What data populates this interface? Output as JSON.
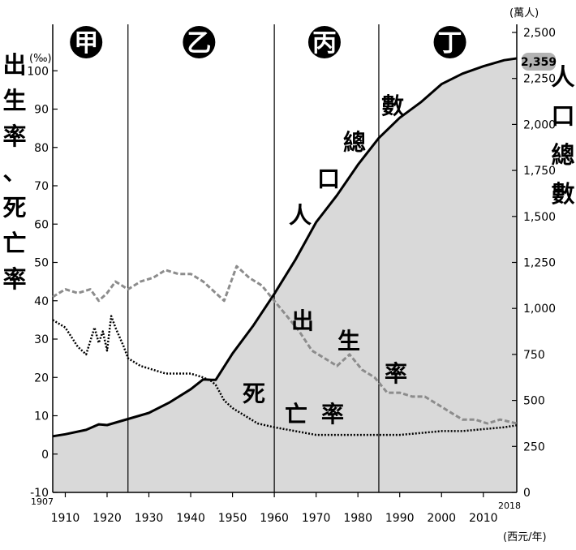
{
  "chart_data": {
    "type": "line",
    "left_axis": {
      "label": "出生率、死亡率",
      "unit": "(‰)",
      "ylim": [
        -10,
        110
      ],
      "ticks": [
        "-10",
        "0",
        "10",
        "20",
        "30",
        "40",
        "50",
        "60",
        "70",
        "80",
        "90",
        "100"
      ]
    },
    "right_axis": {
      "label": "人口總數",
      "unit": "(萬人)",
      "ylim": [
        0,
        2500
      ],
      "ticks": [
        "0",
        "250",
        "500",
        "750",
        "1,000",
        "1,250",
        "1,500",
        "1,750",
        "2,000",
        "2,250",
        "2,500"
      ]
    },
    "x_axis": {
      "unit": "(西元/年)",
      "xlim": [
        1907,
        2018
      ],
      "ticks": [
        "1910",
        "1920",
        "1930",
        "1940",
        "1950",
        "1960",
        "1970",
        "1980",
        "1990",
        "2000",
        "2010"
      ],
      "start_label": "1907",
      "end_label": "2018"
    },
    "eras": [
      {
        "label": "甲",
        "x": 1915
      },
      {
        "label": "乙",
        "x": 1942
      },
      {
        "label": "丙",
        "x": 1972
      },
      {
        "label": "丁",
        "x": 2002
      }
    ],
    "dividers": [
      1925,
      1960,
      1985
    ],
    "callout": "2,359",
    "series": [
      {
        "name": "人口總數",
        "axis": "right",
        "style": "solid",
        "x": [
          1907,
          1910,
          1915,
          1918,
          1920,
          1925,
          1930,
          1935,
          1940,
          1943,
          1945,
          1946,
          1950,
          1955,
          1960,
          1965,
          1970,
          1975,
          1980,
          1985,
          1990,
          1995,
          2000,
          2005,
          2010,
          2015,
          2018
        ],
        "values": [
          305,
          316,
          340,
          370,
          366,
          399,
          432,
          490,
          561,
          614,
          612,
          612,
          755,
          908,
          1079,
          1263,
          1468,
          1615,
          1781,
          1926,
          2036,
          2120,
          2219,
          2276,
          2316,
          2349,
          2359
        ]
      },
      {
        "name": "出生率",
        "axis": "left",
        "style": "dashed",
        "x": [
          1907,
          1910,
          1913,
          1916,
          1918,
          1920,
          1922,
          1925,
          1928,
          1931,
          1934,
          1937,
          1940,
          1943,
          1946,
          1948,
          1951,
          1954,
          1957,
          1960,
          1963,
          1966,
          1969,
          1972,
          1975,
          1978,
          1981,
          1984,
          1987,
          1990,
          1993,
          1996,
          1999,
          2002,
          2005,
          2008,
          2011,
          2014,
          2018
        ],
        "values": [
          41,
          43,
          42,
          43,
          40,
          42,
          45,
          43,
          45,
          46,
          48,
          47,
          47,
          45,
          42,
          40,
          49,
          46,
          44,
          40,
          36,
          32,
          27,
          25,
          23,
          26,
          22,
          20,
          16,
          16,
          15,
          15,
          13,
          11,
          9,
          9,
          8,
          9,
          8
        ]
      },
      {
        "name": "死亡率",
        "axis": "left",
        "style": "dotted",
        "x": [
          1907,
          1910,
          1913,
          1915,
          1917,
          1918,
          1919,
          1920,
          1921,
          1922,
          1924,
          1925,
          1928,
          1931,
          1934,
          1937,
          1940,
          1943,
          1945,
          1946,
          1948,
          1950,
          1953,
          1956,
          1960,
          1965,
          1970,
          1975,
          1980,
          1985,
          1990,
          1995,
          2000,
          2005,
          2010,
          2015,
          2018
        ],
        "values": [
          35,
          33,
          28,
          26,
          33,
          29,
          32,
          27,
          36,
          33,
          28,
          25,
          23,
          22,
          21,
          21,
          21,
          20,
          19,
          18,
          14,
          12,
          10,
          8,
          7,
          6,
          5,
          5,
          5,
          5,
          5,
          5.5,
          6,
          6,
          6.5,
          7,
          7.5
        ]
      }
    ]
  },
  "labels": {
    "left_axis_title": "出生率、死亡率",
    "right_axis_title": "人口總數",
    "population_in": [
      "人",
      "口",
      "總",
      "數"
    ],
    "birth_in": [
      "出",
      "生",
      "率"
    ],
    "death_in": [
      "死",
      "亡",
      "率"
    ]
  },
  "colors": {
    "area_fill": "#d9d9d9",
    "population_line": "#000000",
    "birth_line": "#8c8c8c",
    "death_line": "#000000",
    "era_circle": "#000000",
    "callout_bg": "#b3b3b3"
  }
}
